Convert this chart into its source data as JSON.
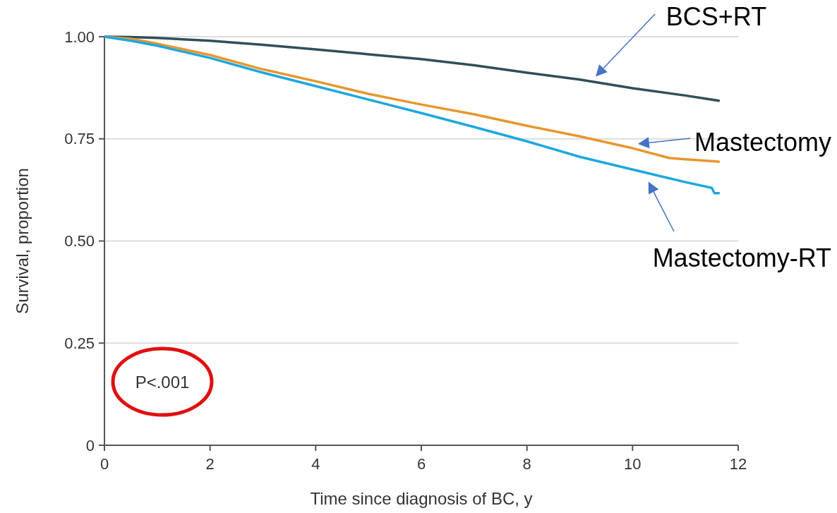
{
  "chart_data": {
    "type": "line",
    "xlabel": "Time since diagnosis of BC, y",
    "ylabel": "Survival, proportion",
    "xlim": [
      0,
      12
    ],
    "xticks": [
      0,
      2,
      4,
      6,
      8,
      10,
      12
    ],
    "ylim": [
      0,
      1
    ],
    "yticks": [
      {
        "value": 0,
        "label": "0"
      },
      {
        "value": 0.25,
        "label": "0.25"
      },
      {
        "value": 0.5,
        "label": "0.50"
      },
      {
        "value": 0.75,
        "label": "0.75"
      },
      {
        "value": 1,
        "label": "1.00"
      }
    ],
    "grid": "y",
    "marker": "none",
    "line_style": "solid",
    "annotations": [
      "P<.001"
    ],
    "series": [
      {
        "name": "BCS+RT",
        "color": "#2f4f5a",
        "x": [
          0,
          0.5,
          1,
          2,
          3,
          4,
          5,
          6,
          7,
          8,
          9,
          10,
          11,
          11.65
        ],
        "values": [
          1,
          0.999,
          0.997,
          0.99,
          0.98,
          0.969,
          0.957,
          0.945,
          0.93,
          0.912,
          0.895,
          0.874,
          0.856,
          0.843
        ]
      },
      {
        "name": "Mastectomy",
        "color": "#e8962e",
        "x": [
          0,
          0.5,
          1,
          2,
          3,
          4,
          5,
          6,
          7,
          8,
          9,
          10,
          10.7,
          11,
          11.65
        ],
        "values": [
          1,
          0.995,
          0.983,
          0.955,
          0.92,
          0.891,
          0.86,
          0.834,
          0.81,
          0.782,
          0.756,
          0.727,
          0.703,
          0.7,
          0.694
        ]
      },
      {
        "name": "Mastectomy-RT",
        "color": "#1ea7e0",
        "x": [
          0,
          0.5,
          1,
          2,
          3,
          4,
          5,
          6,
          7,
          8,
          9,
          10,
          11,
          11.5,
          11.55,
          11.65
        ],
        "values": [
          1,
          0.99,
          0.978,
          0.948,
          0.912,
          0.879,
          0.846,
          0.813,
          0.779,
          0.744,
          0.706,
          0.675,
          0.644,
          0.63,
          0.617,
          0.617
        ]
      }
    ]
  }
}
